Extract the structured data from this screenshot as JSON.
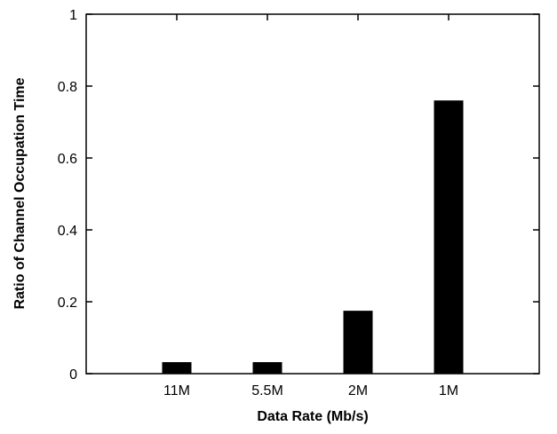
{
  "chart_data": {
    "type": "bar",
    "title": "",
    "xlabel": "Data Rate (Mb/s)",
    "ylabel": "Ratio of Channel Occupation Time",
    "categories": [
      "11M",
      "5.5M",
      "2M",
      "1M"
    ],
    "values": [
      0.032,
      0.032,
      0.175,
      0.76
    ],
    "ylim": [
      0,
      1
    ],
    "yticks": [
      "0",
      "0.2",
      "0.4",
      "0.6",
      "0.8",
      "1"
    ],
    "ytick_values": [
      0,
      0.2,
      0.4,
      0.6,
      0.8,
      1
    ],
    "grid": false,
    "legend": "none",
    "bar_color": "#000000"
  }
}
